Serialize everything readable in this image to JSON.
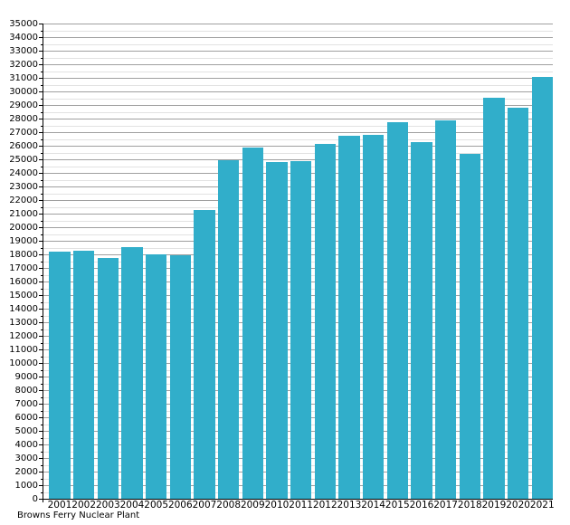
{
  "chart_data": {
    "type": "bar",
    "title": "",
    "xlabel": "Browns Ferry Nuclear Plant",
    "ylabel": "",
    "categories": [
      "2001",
      "2002",
      "2003",
      "2004",
      "2005",
      "2006",
      "2007",
      "2008",
      "2009",
      "2010",
      "2011",
      "2012",
      "2013",
      "2014",
      "2015",
      "2016",
      "2017",
      "2018",
      "2019",
      "2020",
      "2021"
    ],
    "values": [
      18200,
      18270,
      17760,
      18550,
      18030,
      17950,
      21250,
      24910,
      25850,
      24800,
      24870,
      26140,
      26750,
      26810,
      27740,
      26260,
      27880,
      25420,
      29540,
      28790,
      31050
    ],
    "ylim": [
      0,
      35000
    ],
    "y_major_step": 1000,
    "y_minor_step": 500,
    "grid": "on",
    "legend": "none",
    "bar_color": "#31aeca",
    "major_grid_color": "#a0a0a0",
    "minor_grid_color": "#e2e2e2",
    "axis_color": "#000000",
    "text_color": "#000000"
  }
}
